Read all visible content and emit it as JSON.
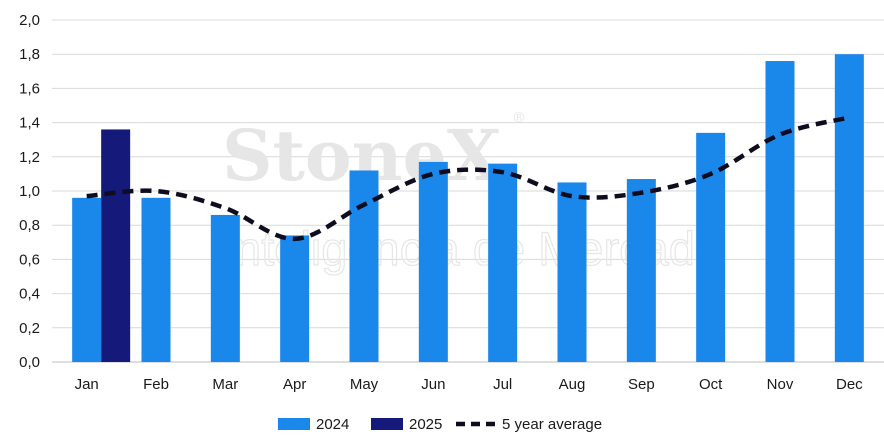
{
  "chart_data": {
    "type": "bar",
    "categories": [
      "Jan",
      "Feb",
      "Mar",
      "Apr",
      "May",
      "Jun",
      "Jul",
      "Aug",
      "Sep",
      "Oct",
      "Nov",
      "Dec"
    ],
    "series": [
      {
        "name": "2024",
        "type": "bar",
        "color": "#1a87ea",
        "values": [
          0.96,
          0.96,
          0.86,
          0.74,
          1.12,
          1.17,
          1.16,
          1.05,
          1.07,
          1.34,
          1.76,
          1.8
        ]
      },
      {
        "name": "2025",
        "type": "bar",
        "color": "#14197a",
        "values": [
          1.36,
          null,
          null,
          null,
          null,
          null,
          null,
          null,
          null,
          null,
          null,
          null
        ]
      },
      {
        "name": "5 year average",
        "type": "line",
        "style": "dashed",
        "color": "#0d0d1f",
        "values": [
          0.97,
          1.0,
          0.9,
          0.72,
          0.92,
          1.1,
          1.11,
          0.97,
          0.99,
          1.1,
          1.33,
          1.43
        ]
      }
    ],
    "ylim": [
      0,
      2.0
    ],
    "yticks": [
      "0,0",
      "0,2",
      "0,4",
      "0,6",
      "0,8",
      "1,0",
      "1,2",
      "1,4",
      "1,6",
      "1,8",
      "2,0"
    ],
    "grid": true,
    "legend_position": "bottom"
  },
  "watermark": {
    "brand": "StoneX",
    "mark": "®",
    "subtitle": "Inteligência de Mercado"
  }
}
